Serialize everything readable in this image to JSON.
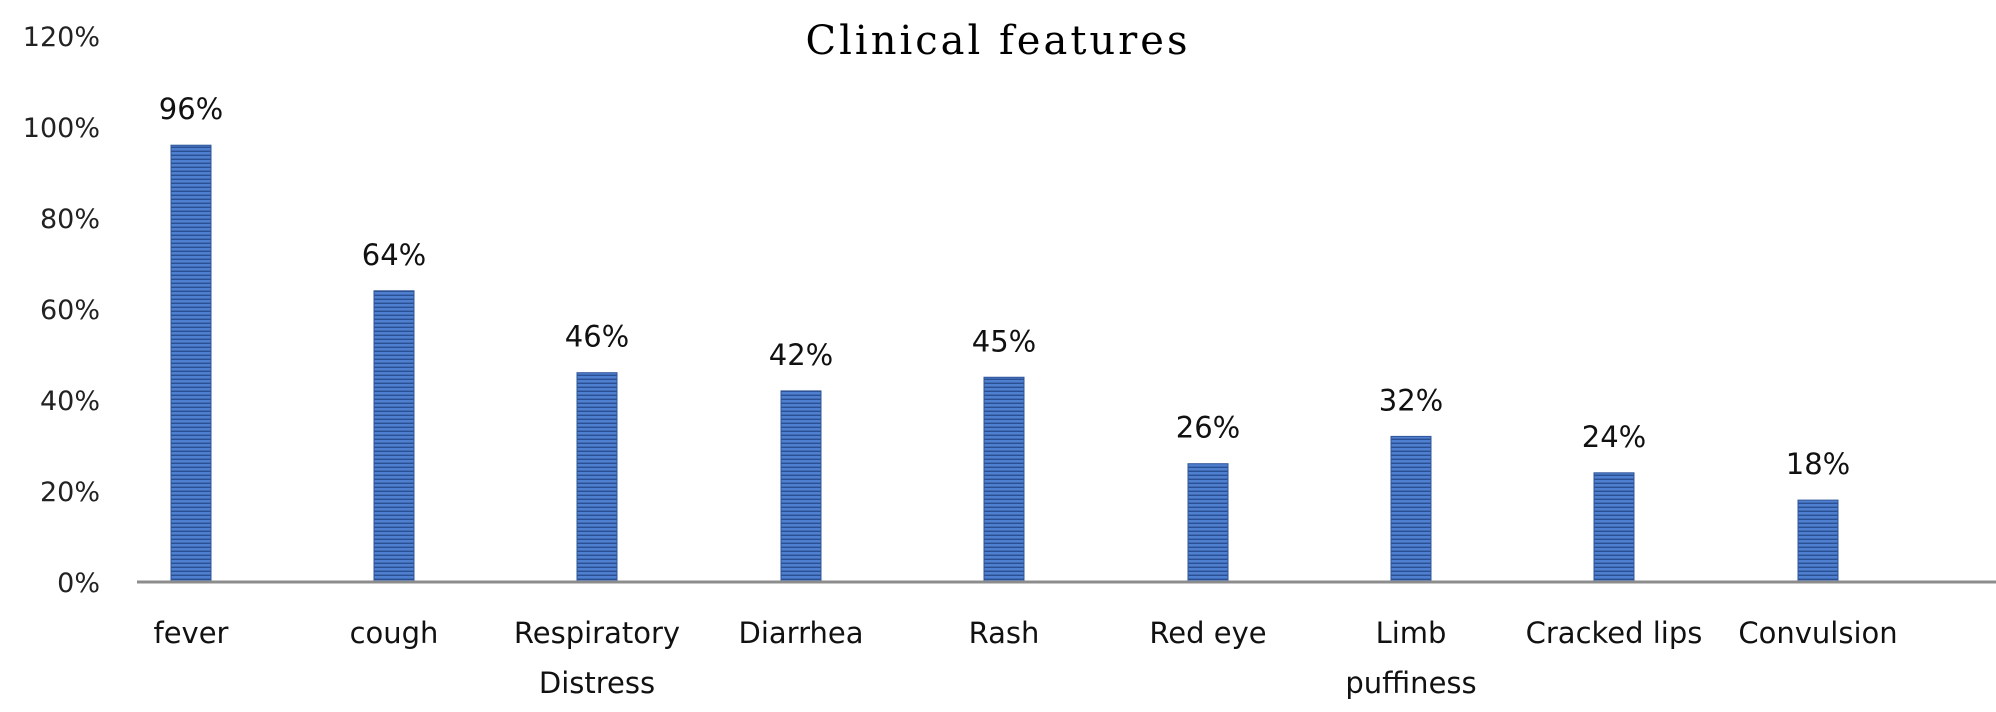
{
  "chart_data": {
    "type": "bar",
    "title": "Clinical features",
    "xlabel": "",
    "ylabel": "",
    "categories": [
      [
        "fever"
      ],
      [
        "cough"
      ],
      [
        "Respiratory",
        "Distress"
      ],
      [
        "Diarrhea"
      ],
      [
        "Rash"
      ],
      [
        "Red eye"
      ],
      [
        "Limb",
        "puffiness"
      ],
      [
        "Cracked lips"
      ],
      [
        "Convulsion"
      ]
    ],
    "values": [
      96,
      64,
      46,
      42,
      45,
      26,
      32,
      24,
      18
    ],
    "data_labels": [
      "96%",
      "64%",
      "46%",
      "42%",
      "45%",
      "26%",
      "32%",
      "24%",
      "18%"
    ],
    "ylim": [
      0,
      120
    ],
    "yticks": [
      0,
      20,
      40,
      60,
      80,
      100,
      120
    ],
    "ytick_labels": [
      "0%",
      "20%",
      "40%",
      "60%",
      "80%",
      "100%",
      "120%"
    ],
    "grid": false,
    "legend": "none",
    "colors": {
      "bar": "#4472C4",
      "bar_dark": "#2F5597",
      "axis": "#8C8C8C"
    }
  }
}
